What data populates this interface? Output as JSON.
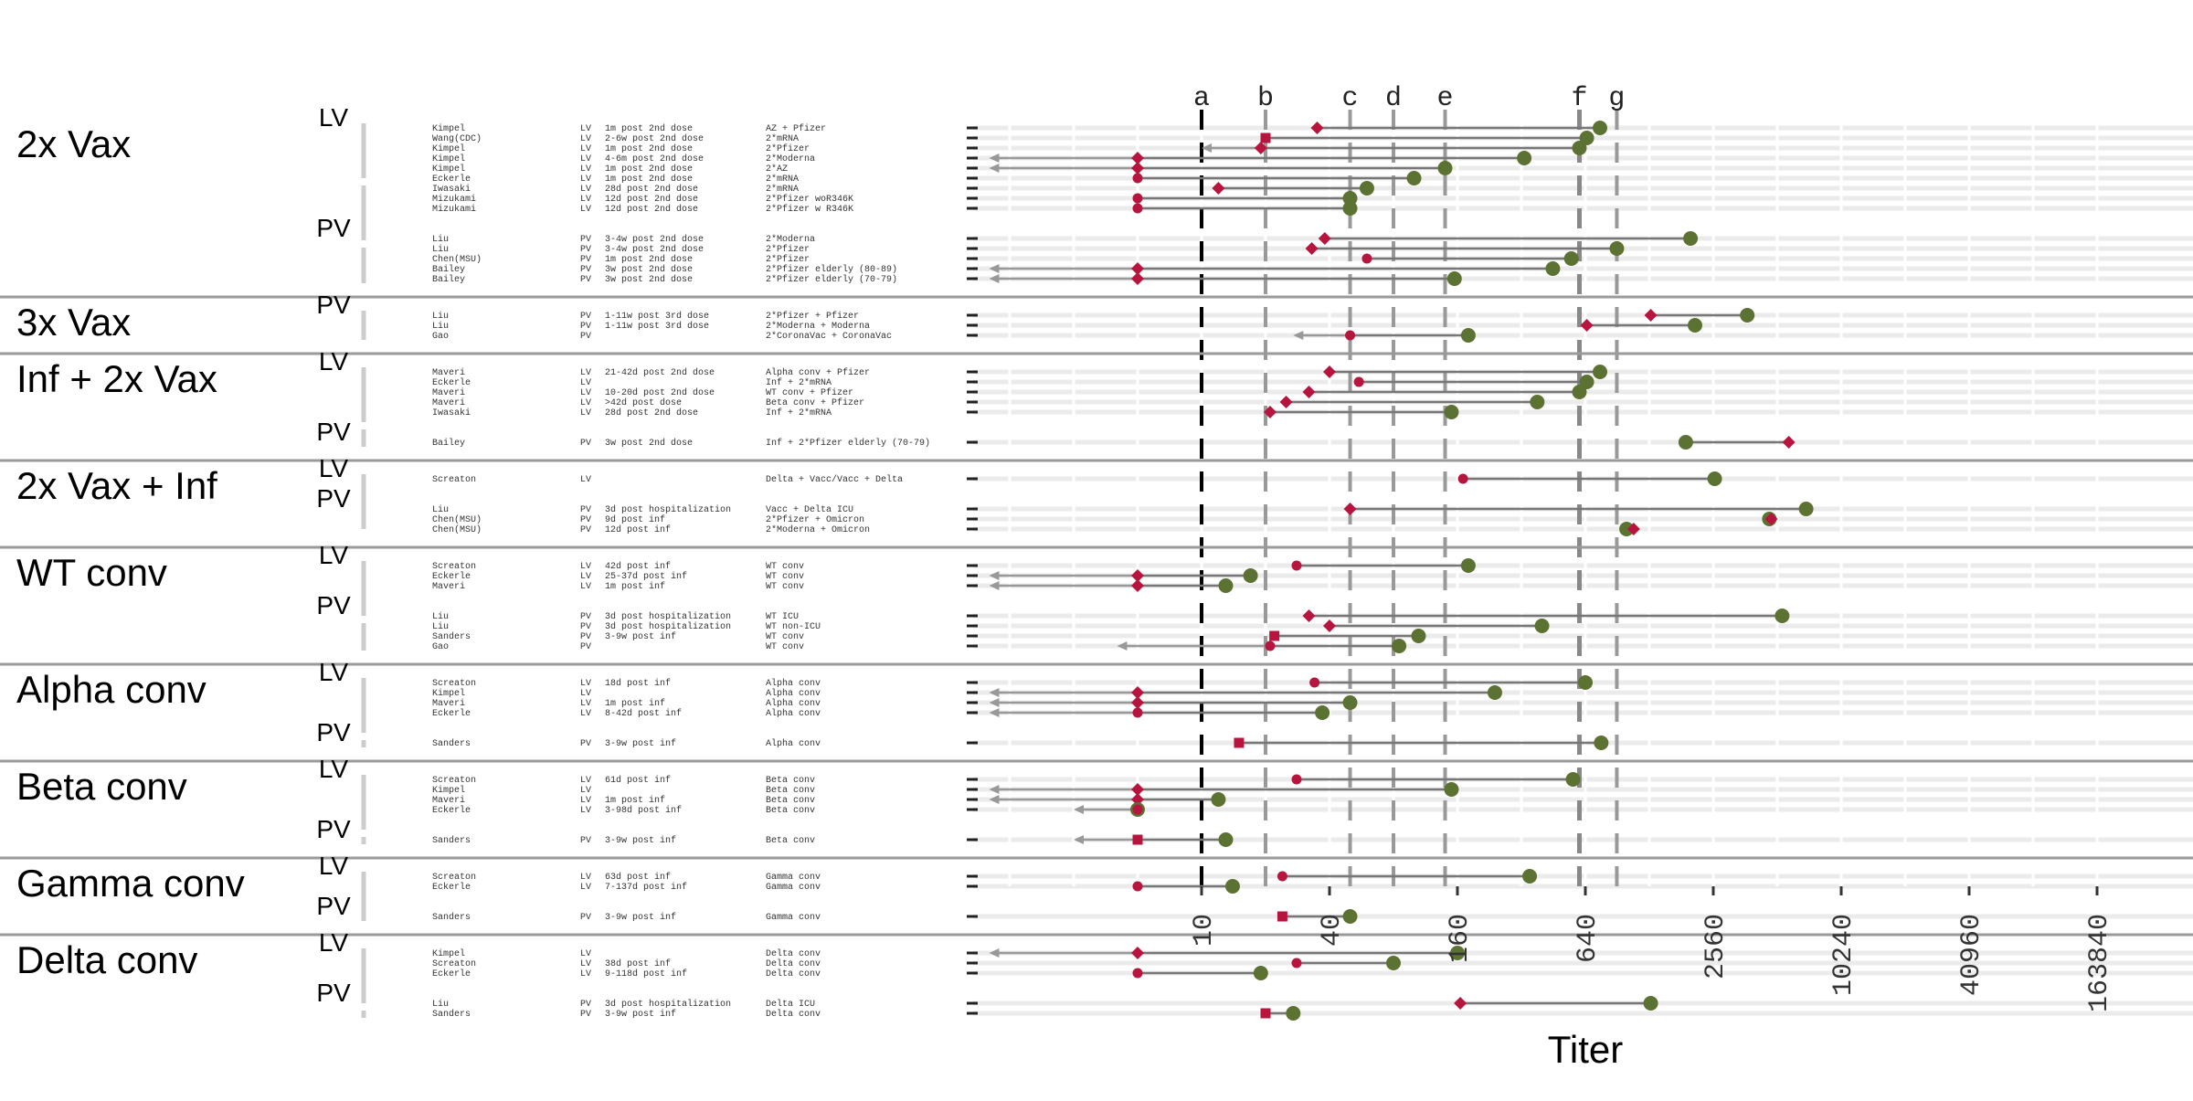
{
  "chart_data": {
    "type": "scatter",
    "xlabel": "Titer",
    "x_scale": "log2",
    "x_ticks": [
      10,
      40,
      160,
      640,
      2560,
      10240,
      40960,
      163840
    ],
    "reference_lines": [
      {
        "label": "a",
        "x": 10
      },
      {
        "label": "b",
        "x": 20
      },
      {
        "label": "c",
        "x": 50
      },
      {
        "label": "d",
        "x": 80
      },
      {
        "label": "e",
        "x": 140
      },
      {
        "label": "f",
        "x": 600
      },
      {
        "label": "g",
        "x": 900
      }
    ],
    "groups": [
      {
        "name": "2x Vax",
        "subgroups": [
          {
            "type": "LV",
            "rows": [
              {
                "study": "Kimpel",
                "assay": "LV",
                "time": "1m post 2nd dose",
                "exposure": "AZ + Pfizer",
                "wt": 750,
                "omicron": 35,
                "shape": "diamond"
              },
              {
                "study": "Wang(CDC)",
                "assay": "LV",
                "time": "2-6w post 2nd dose",
                "exposure": "2*mRNA",
                "wt": 650,
                "omicron": 20,
                "shape": "square"
              },
              {
                "study": "Kimpel",
                "assay": "LV",
                "time": "1m post 2nd dose",
                "exposure": "2*Pfizer",
                "wt": 600,
                "omicron": 19,
                "shape": "diamond",
                "arrow_to": 10
              },
              {
                "study": "Kimpel",
                "assay": "LV",
                "time": "4-6m post 2nd dose",
                "exposure": "2*Moderna",
                "wt": 330,
                "omicron": 5,
                "shape": "diamond",
                "arrow_to": 1
              },
              {
                "study": "Kimpel",
                "assay": "LV",
                "time": "1m post 2nd dose",
                "exposure": "2*AZ",
                "wt": 140,
                "omicron": 5,
                "shape": "diamond",
                "arrow_to": 1
              },
              {
                "study": "Eckerle",
                "assay": "LV",
                "time": "1m post 2nd dose",
                "exposure": "2*mRNA",
                "wt": 100,
                "omicron": 5,
                "shape": "circle"
              },
              {
                "study": "Iwasaki",
                "assay": "LV",
                "time": "28d post 2nd dose",
                "exposure": "2*mRNA",
                "wt": 60,
                "omicron": 12,
                "shape": "diamond"
              },
              {
                "study": "Mizukami",
                "assay": "LV",
                "time": "12d post 2nd dose",
                "exposure": "2*Pfizer woR346K",
                "wt": 50,
                "omicron": 5,
                "shape": "circle"
              },
              {
                "study": "Mizukami",
                "assay": "LV",
                "time": "12d post 2nd dose",
                "exposure": "2*Pfizer w R346K",
                "wt": 50,
                "omicron": 5,
                "shape": "circle"
              }
            ]
          },
          {
            "type": "PV",
            "rows": [
              {
                "study": "Liu",
                "assay": "PV",
                "time": "3-4w post 2nd dose",
                "exposure": "2*Moderna",
                "wt": 2000,
                "omicron": 38,
                "shape": "diamond"
              },
              {
                "study": "Liu",
                "assay": "PV",
                "time": "3-4w post 2nd dose",
                "exposure": "2*Pfizer",
                "wt": 900,
                "omicron": 33,
                "shape": "diamond"
              },
              {
                "study": "Chen(MSU)",
                "assay": "PV",
                "time": "1m post 2nd dose",
                "exposure": "2*Pfizer",
                "wt": 550,
                "omicron": 60,
                "shape": "circle"
              },
              {
                "study": "Bailey",
                "assay": "PV",
                "time": "3w post 2nd dose",
                "exposure": "2*Pfizer elderly (80-89)",
                "wt": 450,
                "omicron": 5,
                "shape": "diamond",
                "arrow_to": 1
              },
              {
                "study": "Bailey",
                "assay": "PV",
                "time": "3w post 2nd dose",
                "exposure": "2*Pfizer elderly (70-79)",
                "wt": 155,
                "omicron": 5,
                "shape": "diamond",
                "arrow_to": 1
              }
            ]
          }
        ]
      },
      {
        "name": "3x Vax",
        "subgroups": [
          {
            "type": "PV",
            "rows": [
              {
                "study": "Liu",
                "assay": "PV",
                "time": "1-11w post 3rd dose",
                "exposure": "2*Pfizer + Pfizer",
                "wt": 3700,
                "omicron": 1300,
                "shape": "diamond"
              },
              {
                "study": "Liu",
                "assay": "PV",
                "time": "1-11w post 3rd dose",
                "exposure": "2*Moderna + Moderna",
                "wt": 2100,
                "omicron": 650,
                "shape": "diamond"
              },
              {
                "study": "Gao",
                "assay": "PV",
                "time": "",
                "exposure": "2*CoronaVac + CoronaVac",
                "wt": 180,
                "omicron": 50,
                "shape": "circle",
                "arrow_to": 27
              }
            ]
          }
        ]
      },
      {
        "name": "Inf + 2x Vax",
        "subgroups": [
          {
            "type": "LV",
            "rows": [
              {
                "study": "Maveri",
                "assay": "LV",
                "time": "21-42d post 2nd dose",
                "exposure": "Alpha conv + Pfizer",
                "wt": 750,
                "omicron": 40,
                "shape": "diamond"
              },
              {
                "study": "Eckerle",
                "assay": "LV",
                "time": "",
                "exposure": "Inf + 2*mRNA",
                "wt": 650,
                "omicron": 55,
                "shape": "circle"
              },
              {
                "study": "Maveri",
                "assay": "LV",
                "time": "10-20d post 2nd dose",
                "exposure": "WT conv + Pfizer",
                "wt": 600,
                "omicron": 32,
                "shape": "diamond"
              },
              {
                "study": "Maveri",
                "assay": "LV",
                "time": ">42d post dose",
                "exposure": "Beta conv + Pfizer",
                "wt": 380,
                "omicron": 25,
                "shape": "diamond"
              },
              {
                "study": "Iwasaki",
                "assay": "LV",
                "time": "28d post 2nd dose",
                "exposure": "Inf + 2*mRNA",
                "wt": 150,
                "omicron": 21,
                "shape": "diamond"
              }
            ]
          },
          {
            "type": "PV",
            "rows": [
              {
                "study": "Bailey",
                "assay": "PV",
                "time": "3w post 2nd dose",
                "exposure": "Inf + 2*Pfizer elderly (70-79)",
                "wt": 1900,
                "omicron": 5800,
                "shape": "diamond"
              }
            ]
          }
        ]
      },
      {
        "name": "2x Vax + Inf",
        "subgroups": [
          {
            "type": "LV",
            "rows": [
              {
                "study": "Screaton",
                "assay": "LV",
                "time": "",
                "exposure": "Delta + Vacc/Vacc + Delta",
                "wt": 2600,
                "omicron": 170,
                "shape": "circle"
              }
            ]
          },
          {
            "type": "PV",
            "rows": [
              {
                "study": "Liu",
                "assay": "PV",
                "time": "3d post hospitalization",
                "exposure": "Vacc + Delta ICU",
                "wt": 7000,
                "omicron": 50,
                "shape": "diamond"
              },
              {
                "study": "Chen(MSU)",
                "assay": "PV",
                "time": "9d post inf",
                "exposure": "2*Pfizer + Omicron",
                "wt": 4700,
                "omicron": 4800,
                "shape": "diamond"
              },
              {
                "study": "Chen(MSU)",
                "assay": "PV",
                "time": "12d post inf",
                "exposure": "2*Moderna + Omicron",
                "wt": 1000,
                "omicron": 1080,
                "shape": "diamond"
              }
            ]
          }
        ]
      },
      {
        "name": "WT conv",
        "subgroups": [
          {
            "type": "LV",
            "rows": [
              {
                "study": "Screaton",
                "assay": "LV",
                "time": "42d post inf",
                "exposure": "WT conv",
                "wt": 180,
                "omicron": 28,
                "shape": "circle"
              },
              {
                "study": "Eckerle",
                "assay": "LV",
                "time": "25-37d post inf",
                "exposure": "WT conv",
                "wt": 17,
                "omicron": 5,
                "shape": "diamond",
                "arrow_to": 1
              },
              {
                "study": "Maveri",
                "assay": "LV",
                "time": "1m post inf",
                "exposure": "WT conv",
                "wt": 13,
                "omicron": 5,
                "shape": "diamond",
                "arrow_to": 1
              }
            ]
          },
          {
            "type": "PV",
            "rows": [
              {
                "study": "Liu",
                "assay": "PV",
                "time": "3d post hospitalization",
                "exposure": "WT ICU",
                "wt": 5400,
                "omicron": 32,
                "shape": "diamond"
              },
              {
                "study": "Liu",
                "assay": "PV",
                "time": "3d post hospitalization",
                "exposure": "WT non-ICU",
                "wt": 400,
                "omicron": 40,
                "shape": "diamond"
              },
              {
                "study": "Sanders",
                "assay": "PV",
                "time": "3-9w post inf",
                "exposure": "WT conv",
                "wt": 105,
                "omicron": 22,
                "shape": "square"
              },
              {
                "study": "Gao",
                "assay": "PV",
                "time": "",
                "exposure": "WT conv",
                "wt": 85,
                "omicron": 21,
                "shape": "circle",
                "arrow_to": 4
              }
            ]
          }
        ]
      },
      {
        "name": "Alpha conv",
        "subgroups": [
          {
            "type": "LV",
            "rows": [
              {
                "study": "Screaton",
                "assay": "LV",
                "time": "18d post inf",
                "exposure": "Alpha conv",
                "wt": 640,
                "omicron": 34,
                "shape": "circle"
              },
              {
                "study": "Kimpel",
                "assay": "LV",
                "time": "",
                "exposure": "Alpha conv",
                "wt": 240,
                "omicron": 5,
                "shape": "diamond",
                "arrow_to": 1
              },
              {
                "study": "Maveri",
                "assay": "LV",
                "time": "1m post inf",
                "exposure": "Alpha conv",
                "wt": 50,
                "omicron": 5,
                "shape": "diamond",
                "arrow_to": 1
              },
              {
                "study": "Eckerle",
                "assay": "LV",
                "time": "8-42d post inf",
                "exposure": "Alpha conv",
                "wt": 37,
                "omicron": 5,
                "shape": "circle",
                "arrow_to": 1
              }
            ]
          },
          {
            "type": "PV",
            "rows": [
              {
                "study": "Sanders",
                "assay": "PV",
                "time": "3-9w post inf",
                "exposure": "Alpha conv",
                "wt": 760,
                "omicron": 15,
                "shape": "square"
              }
            ]
          }
        ]
      },
      {
        "name": "Beta conv",
        "subgroups": [
          {
            "type": "LV",
            "rows": [
              {
                "study": "Screaton",
                "assay": "LV",
                "time": "61d post inf",
                "exposure": "Beta conv",
                "wt": 560,
                "omicron": 28,
                "shape": "circle"
              },
              {
                "study": "Kimpel",
                "assay": "LV",
                "time": "",
                "exposure": "Beta conv",
                "wt": 150,
                "omicron": 5,
                "shape": "diamond",
                "arrow_to": 1
              },
              {
                "study": "Maveri",
                "assay": "LV",
                "time": "1m post inf",
                "exposure": "Beta conv",
                "wt": 12,
                "omicron": 5,
                "shape": "diamond",
                "arrow_to": 1
              },
              {
                "study": "Eckerle",
                "assay": "LV",
                "time": "3-98d post inf",
                "exposure": "Beta conv",
                "wt": 5,
                "omicron": 5,
                "shape": "circle",
                "arrow_to": 2.5
              }
            ]
          },
          {
            "type": "PV",
            "rows": [
              {
                "study": "Sanders",
                "assay": "PV",
                "time": "3-9w post inf",
                "exposure": "Beta conv",
                "wt": 13,
                "omicron": 5,
                "shape": "square",
                "arrow_to": 2.5
              }
            ]
          }
        ]
      },
      {
        "name": "Gamma conv",
        "subgroups": [
          {
            "type": "LV",
            "rows": [
              {
                "study": "Screaton",
                "assay": "LV",
                "time": "63d post inf",
                "exposure": "Gamma conv",
                "wt": 350,
                "omicron": 24,
                "shape": "circle"
              },
              {
                "study": "Eckerle",
                "assay": "LV",
                "time": "7-137d post inf",
                "exposure": "Gamma conv",
                "wt": 14,
                "omicron": 5,
                "shape": "circle"
              }
            ]
          },
          {
            "type": "PV",
            "rows": [
              {
                "study": "Sanders",
                "assay": "PV",
                "time": "3-9w post inf",
                "exposure": "Gamma conv",
                "wt": 50,
                "omicron": 24,
                "shape": "square"
              }
            ]
          }
        ]
      },
      {
        "name": "Delta conv",
        "subgroups": [
          {
            "type": "LV",
            "rows": [
              {
                "study": "Kimpel",
                "assay": "LV",
                "time": "",
                "exposure": "Delta conv",
                "wt": 160,
                "omicron": 5,
                "shape": "diamond",
                "arrow_to": 1
              },
              {
                "study": "Screaton",
                "assay": "LV",
                "time": "38d post inf",
                "exposure": "Delta conv",
                "wt": 80,
                "omicron": 28,
                "shape": "circle"
              },
              {
                "study": "Eckerle",
                "assay": "LV",
                "time": "9-118d post inf",
                "exposure": "Delta conv",
                "wt": 19,
                "omicron": 5,
                "shape": "circle"
              }
            ]
          },
          {
            "type": "PV",
            "rows": [
              {
                "study": "Liu",
                "assay": "PV",
                "time": "3d post hospitalization",
                "exposure": "Delta ICU",
                "wt": 1300,
                "omicron": 165,
                "shape": "diamond"
              },
              {
                "study": "Sanders",
                "assay": "PV",
                "time": "3-9w post inf",
                "exposure": "Delta conv",
                "wt": 27,
                "omicron": 20,
                "shape": "square"
              }
            ]
          }
        ]
      }
    ],
    "colors": {
      "wildtype_point": "#5c7232",
      "omicron_point": "#b8153e",
      "segment": "#777777",
      "ref_line_primary": "#000000",
      "ref_line_secondary": "#999999",
      "row_band": "#ebebeb",
      "separator": "#9a9a9a",
      "bracket": "#cccccc"
    }
  }
}
